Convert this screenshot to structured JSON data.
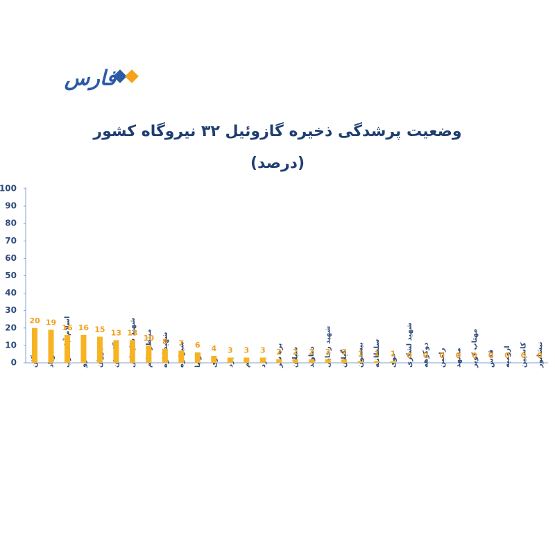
{
  "logo": "فارس",
  "chart_data": {
    "type": "bar",
    "title": "وضعیت پرشدگی ذخیره گازوئیل ۳۲ نیروگاه کشور",
    "subtitle": "(درصد)",
    "categories": [
      "سمنگان",
      "شوباد",
      "اسلام آباد غرب",
      "سرو",
      "شیروان",
      "گلستان",
      "شهید سلیمانی",
      "منتظر قائم",
      "شهید کاوه",
      "شیرکوه",
      "بوتیا",
      "ری",
      "یزد",
      "قم",
      "یزد",
      "بره سر",
      "سیلان",
      "دماوند",
      "شهید رجایی",
      "گیلان",
      "بیستون",
      "سلطانیه",
      "خوی",
      "شهید لشکری",
      "دوکوهه",
      "رامین",
      "مشهد",
      "مهتاب کویر",
      "قدس",
      "ارومیه",
      "کاسپین",
      "نیشابور"
    ],
    "values": [
      20,
      19,
      16,
      16,
      15,
      13,
      13,
      10,
      8,
      7,
      6,
      4,
      3,
      3,
      3,
      2,
      2,
      2,
      2,
      2,
      1,
      1,
      1,
      0,
      0,
      0,
      0,
      0,
      0,
      0,
      0,
      0
    ],
    "color": "#f7b322",
    "ylim": [
      0,
      100
    ],
    "yticks": [
      0,
      10,
      20,
      30,
      40,
      50,
      60,
      70,
      80,
      90,
      100
    ]
  }
}
